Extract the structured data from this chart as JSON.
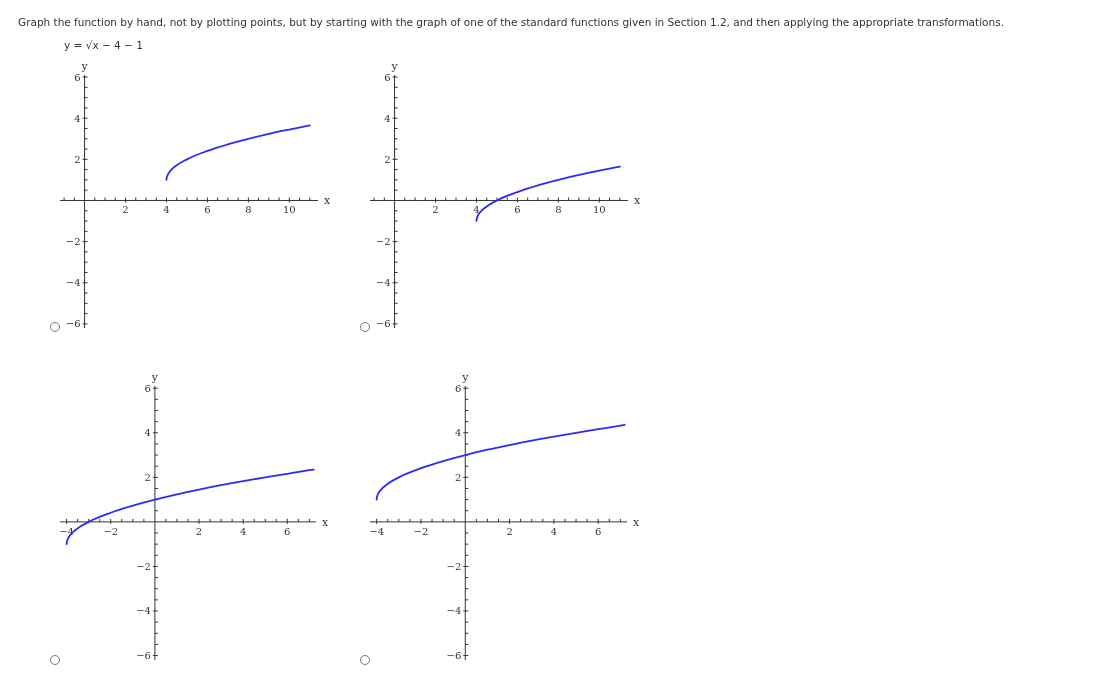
{
  "chart_data": [
    {
      "type": "line",
      "title": "Graph the function by hand, not by plotting points, but by starting with the graph of one of the standard functions given in Section 1.2, and then applying the appropriate transformations.",
      "subtitle": "y = √x − 4 − 1",
      "xlabel": "x",
      "ylabel": "y",
      "xlim": [
        -1.2,
        11.4
      ],
      "ylim": [
        -6.2,
        6.1
      ],
      "xticks": [
        {
          "value": -1,
          "label": null
        },
        {
          "value": -0.5,
          "label": null
        },
        {
          "value": 0.5,
          "label": null
        },
        {
          "value": 1,
          "label": null
        },
        {
          "value": 1.5,
          "label": null
        },
        2,
        {
          "value": 2.5,
          "label": null
        },
        {
          "value": 3,
          "label": null
        },
        {
          "value": 3.5,
          "label": null
        },
        4,
        {
          "value": 4.5,
          "label": null
        },
        {
          "value": 5,
          "label": null
        },
        {
          "value": 5.5,
          "label": null
        },
        6,
        {
          "value": 6.5,
          "label": null
        },
        {
          "value": 7,
          "label": null
        },
        {
          "value": 7.5,
          "label": null
        },
        8,
        {
          "value": 8.5,
          "label": null
        },
        {
          "value": 9,
          "label": null
        },
        {
          "value": 9.5,
          "label": null
        },
        10,
        {
          "value": 10.5,
          "label": null
        },
        {
          "value": 11,
          "label": null
        }
      ],
      "yticks": [
        {
          "value": -6,
          "label": "−6"
        },
        {
          "value": -5.5,
          "label": null
        },
        {
          "value": -5,
          "label": null
        },
        {
          "value": -4.5,
          "label": null
        },
        {
          "value": -4,
          "label": "−4"
        },
        {
          "value": -3.5,
          "label": null
        },
        {
          "value": -3,
          "label": null
        },
        {
          "value": -2.5,
          "label": null
        },
        {
          "value": -2,
          "label": "−2"
        },
        {
          "value": -1.5,
          "label": null
        },
        {
          "value": -1,
          "label": null
        },
        {
          "value": -0.5,
          "label": null
        },
        {
          "value": 0.5,
          "label": null
        },
        {
          "value": 1,
          "label": null
        },
        {
          "value": 1.5,
          "label": null
        },
        2,
        {
          "value": 2.5,
          "label": null
        },
        {
          "value": 3,
          "label": null
        },
        {
          "value": 3.5,
          "label": null
        },
        4,
        {
          "value": 4.5,
          "label": null
        },
        {
          "value": 5,
          "label": null
        },
        {
          "value": 5.5,
          "label": null
        },
        6
      ],
      "series": [
        {
          "color": "#2b2bf5",
          "x": [
            4,
            4.01,
            4.05,
            4.2,
            4.5,
            5,
            6,
            7,
            8,
            9,
            10,
            11
          ],
          "values": [
            1,
            1.1,
            1.22,
            1.45,
            1.71,
            2,
            2.41,
            2.73,
            3,
            3.24,
            3.45,
            3.65
          ]
        }
      ]
    },
    {
      "type": "line",
      "xlabel": "x",
      "ylabel": "y",
      "xlim": [
        -1.2,
        11.4
      ],
      "ylim": [
        -6.2,
        6.1
      ],
      "xticks": [
        {
          "value": -1,
          "label": null
        },
        {
          "value": -0.5,
          "label": null
        },
        {
          "value": 0.5,
          "label": null
        },
        {
          "value": 1,
          "label": null
        },
        {
          "value": 1.5,
          "label": null
        },
        2,
        {
          "value": 2.5,
          "label": null
        },
        {
          "value": 3,
          "label": null
        },
        {
          "value": 3.5,
          "label": null
        },
        4,
        {
          "value": 4.5,
          "label": null
        },
        {
          "value": 5,
          "label": null
        },
        {
          "value": 5.5,
          "label": null
        },
        6,
        {
          "value": 6.5,
          "label": null
        },
        {
          "value": 7,
          "label": null
        },
        {
          "value": 7.5,
          "label": null
        },
        8,
        {
          "value": 8.5,
          "label": null
        },
        {
          "value": 9,
          "label": null
        },
        {
          "value": 9.5,
          "label": null
        },
        10,
        {
          "value": 10.5,
          "label": null
        },
        {
          "value": 11,
          "label": null
        }
      ],
      "yticks": [
        {
          "value": -6,
          "label": "−6"
        },
        {
          "value": -5.5,
          "label": null
        },
        {
          "value": -5,
          "label": null
        },
        {
          "value": -4.5,
          "label": null
        },
        {
          "value": -4,
          "label": "−4"
        },
        {
          "value": -3.5,
          "label": null
        },
        {
          "value": -3,
          "label": null
        },
        {
          "value": -2.5,
          "label": null
        },
        {
          "value": -2,
          "label": "−2"
        },
        {
          "value": -1.5,
          "label": null
        },
        {
          "value": -1,
          "label": null
        },
        {
          "value": -0.5,
          "label": null
        },
        {
          "value": 0.5,
          "label": null
        },
        {
          "value": 1,
          "label": null
        },
        {
          "value": 1.5,
          "label": null
        },
        2,
        {
          "value": 2.5,
          "label": null
        },
        {
          "value": 3,
          "label": null
        },
        {
          "value": 3.5,
          "label": null
        },
        4,
        {
          "value": 4.5,
          "label": null
        },
        {
          "value": 5,
          "label": null
        },
        {
          "value": 5.5,
          "label": null
        },
        6
      ],
      "series": [
        {
          "color": "#2b2bf5",
          "x": [
            4,
            4.01,
            4.05,
            4.2,
            4.5,
            5,
            6,
            7,
            8,
            9,
            10,
            11
          ],
          "values": [
            -1,
            -0.9,
            -0.78,
            -0.55,
            -0.29,
            0,
            0.41,
            0.73,
            1,
            1.24,
            1.45,
            1.65
          ]
        }
      ]
    },
    {
      "type": "line",
      "xlabel": "x",
      "ylabel": "y",
      "xlim": [
        -4.3,
        7.3
      ],
      "ylim": [
        -6.2,
        6.1
      ],
      "xticks": [
        {
          "value": -4,
          "label": "−4"
        },
        {
          "value": -3.5,
          "label": null
        },
        {
          "value": -3,
          "label": null
        },
        {
          "value": -2.5,
          "label": null
        },
        {
          "value": -2,
          "label": "−2"
        },
        {
          "value": -1.5,
          "label": null
        },
        {
          "value": -1,
          "label": null
        },
        {
          "value": -0.5,
          "label": null
        },
        {
          "value": 0.5,
          "label": null
        },
        {
          "value": 1,
          "label": null
        },
        {
          "value": 1.5,
          "label": null
        },
        2,
        {
          "value": 2.5,
          "label": null
        },
        {
          "value": 3,
          "label": null
        },
        {
          "value": 3.5,
          "label": null
        },
        4,
        {
          "value": 4.5,
          "label": null
        },
        {
          "value": 5,
          "label": null
        },
        {
          "value": 5.5,
          "label": null
        },
        6,
        {
          "value": 6.5,
          "label": null
        },
        {
          "value": 7,
          "label": null
        }
      ],
      "yticks": [
        {
          "value": -6,
          "label": "−6"
        },
        {
          "value": -5.5,
          "label": null
        },
        {
          "value": -5,
          "label": null
        },
        {
          "value": -4.5,
          "label": null
        },
        {
          "value": -4,
          "label": "−4"
        },
        {
          "value": -3.5,
          "label": null
        },
        {
          "value": -3,
          "label": null
        },
        {
          "value": -2.5,
          "label": null
        },
        {
          "value": -2,
          "label": "−2"
        },
        {
          "value": -1.5,
          "label": null
        },
        {
          "value": -1,
          "label": null
        },
        {
          "value": -0.5,
          "label": null
        },
        {
          "value": 0.5,
          "label": null
        },
        {
          "value": 1,
          "label": null
        },
        {
          "value": 1.5,
          "label": null
        },
        2,
        {
          "value": 2.5,
          "label": null
        },
        {
          "value": 3,
          "label": null
        },
        {
          "value": 3.5,
          "label": null
        },
        4,
        {
          "value": 4.5,
          "label": null
        },
        {
          "value": 5,
          "label": null
        },
        {
          "value": 5.5,
          "label": null
        },
        6
      ],
      "series": [
        {
          "color": "#2b2bf5",
          "x": [
            -4,
            -3.99,
            -3.95,
            -3.8,
            -3.5,
            -3,
            -2,
            -1,
            0,
            1,
            2,
            3,
            4,
            5,
            6,
            7,
            7.2
          ],
          "values": [
            -1,
            -0.9,
            -0.78,
            -0.55,
            -0.29,
            0,
            0.41,
            0.73,
            1,
            1.24,
            1.45,
            1.65,
            1.83,
            2,
            2.16,
            2.32,
            2.35
          ]
        }
      ]
    },
    {
      "type": "line",
      "xlabel": "x",
      "ylabel": "y",
      "xlim": [
        -4.3,
        7.3
      ],
      "ylim": [
        -6.2,
        6.1
      ],
      "xticks": [
        {
          "value": -4,
          "label": "−4"
        },
        {
          "value": -3.5,
          "label": null
        },
        {
          "value": -3,
          "label": null
        },
        {
          "value": -2.5,
          "label": null
        },
        {
          "value": -2,
          "label": "−2"
        },
        {
          "value": -1.5,
          "label": null
        },
        {
          "value": -1,
          "label": null
        },
        {
          "value": -0.5,
          "label": null
        },
        {
          "value": 0.5,
          "label": null
        },
        {
          "value": 1,
          "label": null
        },
        {
          "value": 1.5,
          "label": null
        },
        2,
        {
          "value": 2.5,
          "label": null
        },
        {
          "value": 3,
          "label": null
        },
        {
          "value": 3.5,
          "label": null
        },
        4,
        {
          "value": 4.5,
          "label": null
        },
        {
          "value": 5,
          "label": null
        },
        {
          "value": 5.5,
          "label": null
        },
        6,
        {
          "value": 6.5,
          "label": null
        },
        {
          "value": 7,
          "label": null
        }
      ],
      "yticks": [
        {
          "value": -6,
          "label": "−6"
        },
        {
          "value": -5.5,
          "label": null
        },
        {
          "value": -5,
          "label": null
        },
        {
          "value": -4.5,
          "label": null
        },
        {
          "value": -4,
          "label": "−4"
        },
        {
          "value": -3.5,
          "label": null
        },
        {
          "value": -3,
          "label": null
        },
        {
          "value": -2.5,
          "label": null
        },
        {
          "value": -2,
          "label": "−2"
        },
        {
          "value": -1.5,
          "label": null
        },
        {
          "value": -1,
          "label": null
        },
        {
          "value": -0.5,
          "label": null
        },
        {
          "value": 0.5,
          "label": null
        },
        {
          "value": 1,
          "label": null
        },
        {
          "value": 1.5,
          "label": null
        },
        2,
        {
          "value": 2.5,
          "label": null
        },
        {
          "value": 3,
          "label": null
        },
        {
          "value": 3.5,
          "label": null
        },
        4,
        {
          "value": 4.5,
          "label": null
        },
        {
          "value": 5,
          "label": null
        },
        {
          "value": 5.5,
          "label": null
        },
        6
      ],
      "series": [
        {
          "color": "#2b2bf5",
          "x": [
            -4,
            -3.99,
            -3.95,
            -3.8,
            -3.5,
            -3,
            -2,
            -1,
            0,
            1,
            2,
            3,
            4,
            5,
            6,
            7,
            7.2
          ],
          "values": [
            1,
            1.1,
            1.22,
            1.45,
            1.71,
            2,
            2.41,
            2.73,
            3,
            3.24,
            3.45,
            3.65,
            3.83,
            4,
            4.16,
            4.32,
            4.35
          ]
        }
      ]
    }
  ]
}
